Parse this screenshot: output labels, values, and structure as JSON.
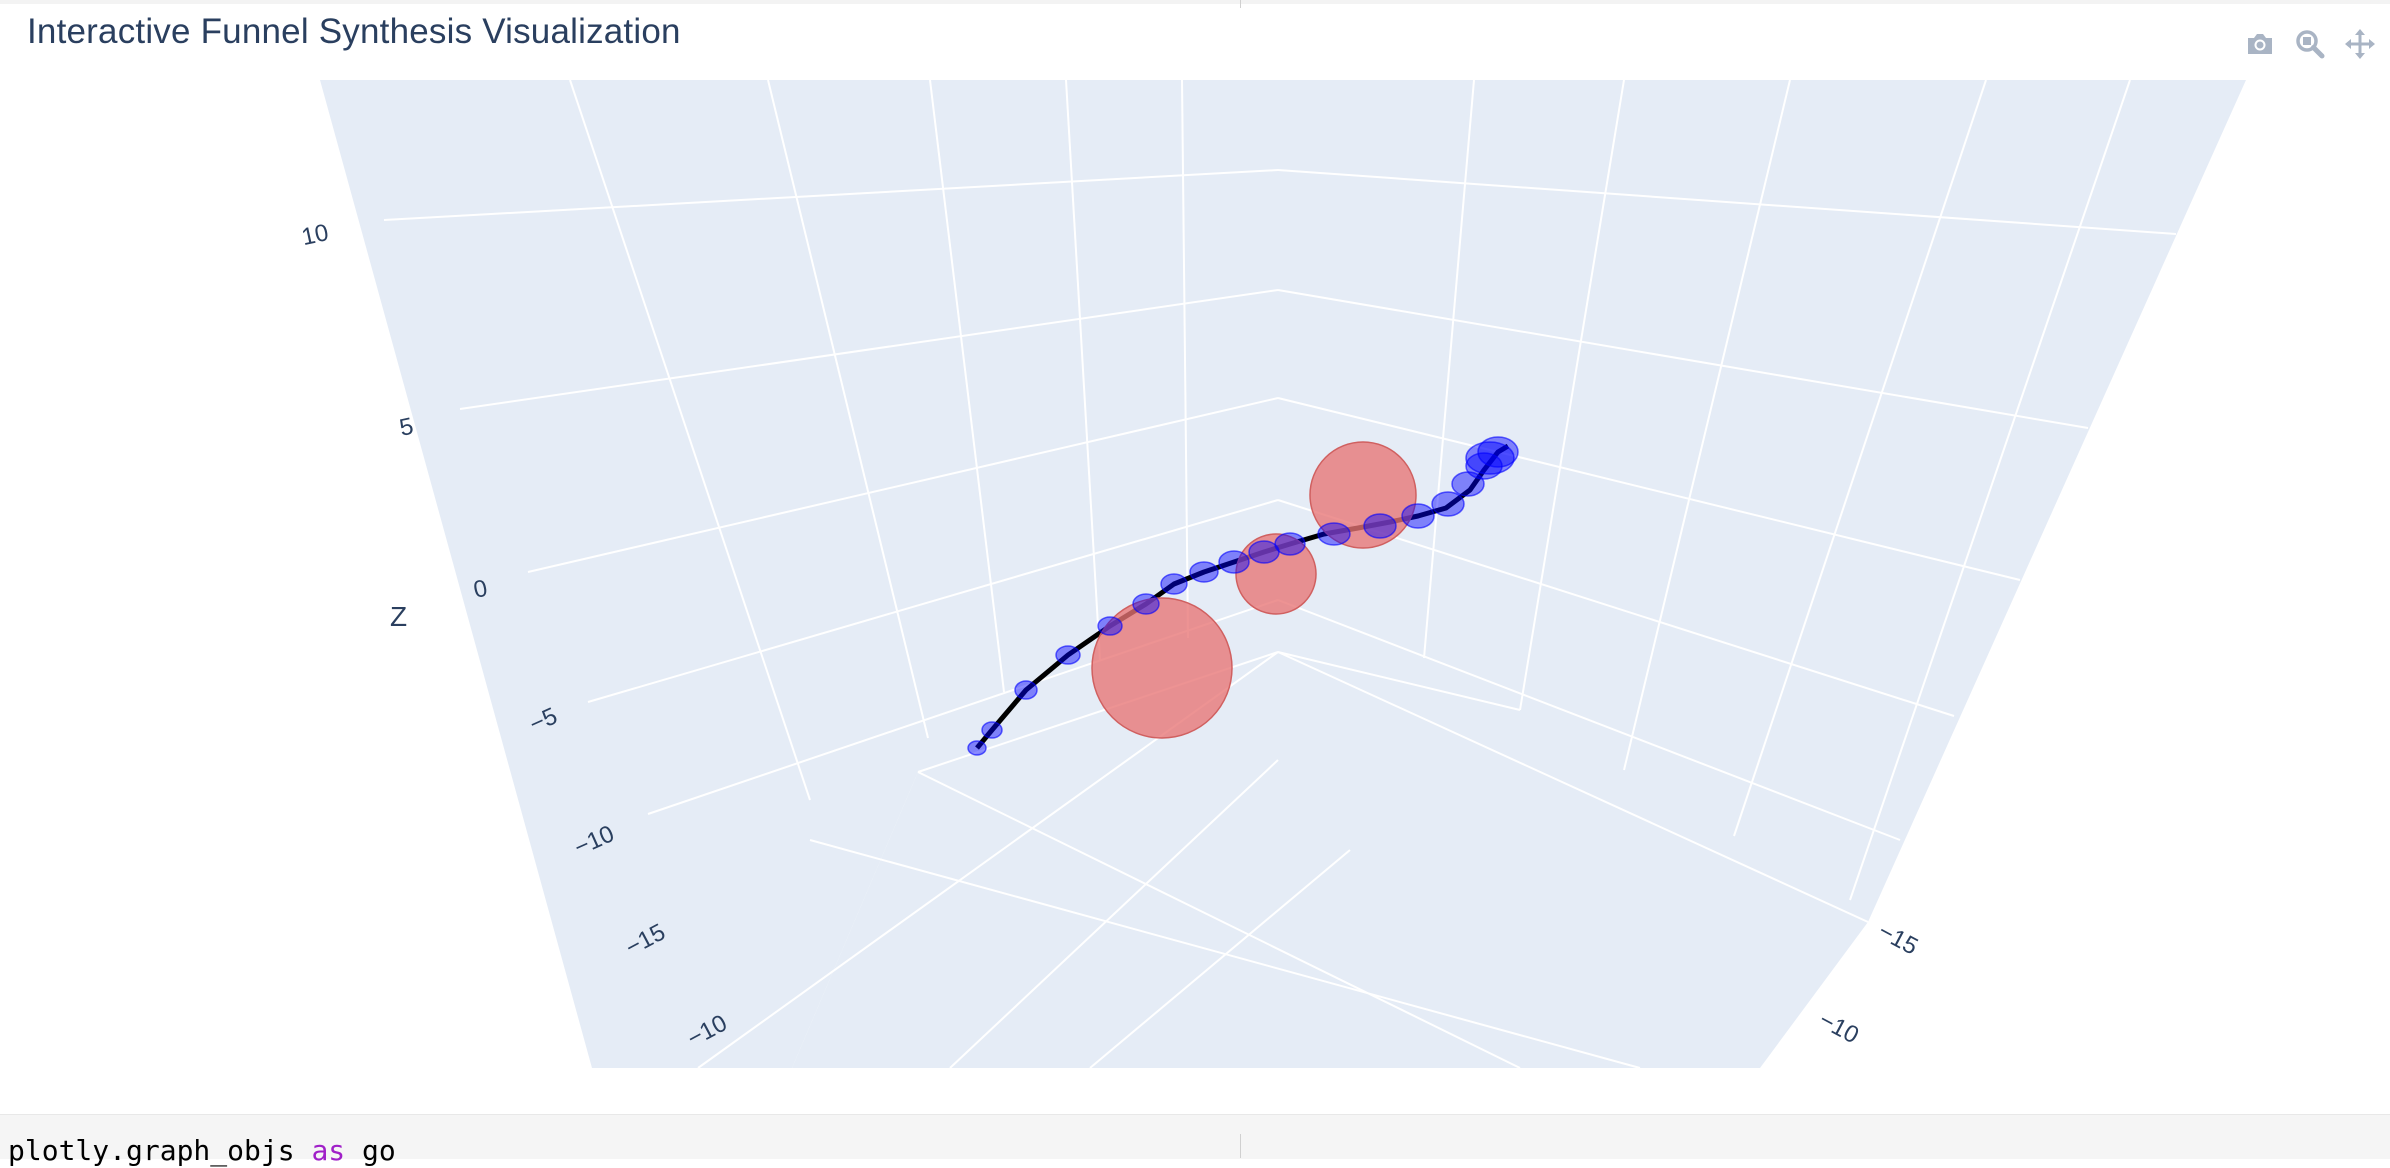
{
  "title": "Interactive Funnel Synthesis Visualization",
  "modebar": {
    "buttons": [
      {
        "name": "camera-icon",
        "tooltip": "Download plot as a png"
      },
      {
        "name": "zoom-icon",
        "tooltip": "Zoom"
      },
      {
        "name": "pan-icon",
        "tooltip": "Pan"
      }
    ]
  },
  "colors": {
    "scene_bg": "#e5ecf6",
    "grid": "#ffffff",
    "axis_text": "#2a3f5f",
    "trajectory": "#000000",
    "marker": "#0000ff",
    "funnel": "#e87474"
  },
  "chart_data": {
    "type": "scatter3d",
    "title": "Interactive Funnel Synthesis Visualization",
    "axes": {
      "z": {
        "label": "Z",
        "ticks": [
          "10",
          "5",
          "0",
          "−5",
          "−10"
        ]
      },
      "x": {
        "ticks": [
          "−15",
          "−10"
        ]
      },
      "y": {
        "ticks": [
          "−15",
          "−10"
        ]
      }
    },
    "grid": true,
    "series": [
      {
        "mode": "lines",
        "color": "#000000"
      },
      {
        "mode": "markers",
        "color": "#0000ff",
        "opacity": 0.5
      },
      {
        "mode": "spheres",
        "color": "#e87474",
        "opacity": 0.75
      }
    ]
  },
  "code": {
    "line_parts": [
      "plotly.graph_objs ",
      "as",
      " go"
    ]
  }
}
